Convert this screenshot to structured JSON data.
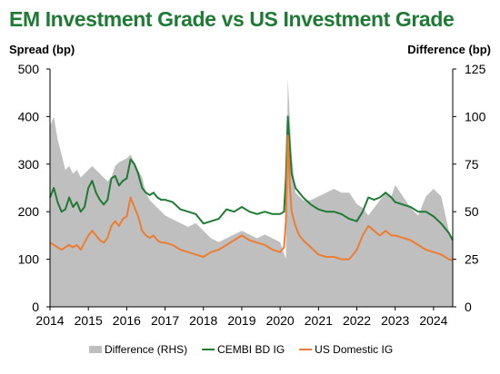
{
  "chart_data": {
    "type": "line",
    "title": "EM Investment Grade vs US Investment Grade",
    "ylabel": "Spread (bp)",
    "y2label": "Difference (bp)",
    "xlim": [
      2014.0,
      2024.5
    ],
    "ylim": [
      0,
      500
    ],
    "y2lim": [
      0,
      125
    ],
    "x_ticks": [
      "2014",
      "2015",
      "2016",
      "2017",
      "2018",
      "2019",
      "2020",
      "2021",
      "2022",
      "2023",
      "2024"
    ],
    "y_ticks": [
      "0",
      "100",
      "200",
      "300",
      "400",
      "500"
    ],
    "y2_ticks": [
      "0",
      "25",
      "50",
      "75",
      "100",
      "125"
    ],
    "grid": false,
    "legend_position": "bottom",
    "x": [
      2014.0,
      2014.1,
      2014.2,
      2014.3,
      2014.4,
      2014.5,
      2014.6,
      2014.7,
      2014.8,
      2014.9,
      2015.0,
      2015.1,
      2015.2,
      2015.3,
      2015.4,
      2015.5,
      2015.6,
      2015.7,
      2015.8,
      2015.9,
      2016.0,
      2016.1,
      2016.2,
      2016.3,
      2016.4,
      2016.5,
      2016.6,
      2016.7,
      2016.8,
      2016.9,
      2017.0,
      2017.2,
      2017.4,
      2017.6,
      2017.8,
      2018.0,
      2018.2,
      2018.4,
      2018.6,
      2018.8,
      2019.0,
      2019.2,
      2019.4,
      2019.6,
      2019.8,
      2020.0,
      2020.1,
      2020.15,
      2020.2,
      2020.25,
      2020.3,
      2020.4,
      2020.5,
      2020.6,
      2020.8,
      2021.0,
      2021.2,
      2021.4,
      2021.6,
      2021.8,
      2022.0,
      2022.15,
      2022.3,
      2022.45,
      2022.6,
      2022.75,
      2022.9,
      2023.0,
      2023.2,
      2023.4,
      2023.6,
      2023.8,
      2024.0,
      2024.2,
      2024.4,
      2024.5
    ],
    "series": [
      {
        "name": "Difference (RHS)",
        "axis": "right",
        "style": "area",
        "color": "#bfbfbf",
        "values": [
          95,
          100,
          88,
          80,
          72,
          74,
          70,
          72,
          68,
          70,
          72,
          74,
          72,
          70,
          68,
          66,
          68,
          74,
          76,
          77,
          78,
          80,
          76,
          72,
          68,
          60,
          56,
          54,
          52,
          50,
          48,
          46,
          44,
          42,
          44,
          40,
          36,
          34,
          36,
          38,
          40,
          38,
          36,
          38,
          36,
          34,
          28,
          25,
          120,
          100,
          80,
          60,
          58,
          56,
          56,
          58,
          60,
          62,
          60,
          60,
          54,
          52,
          48,
          52,
          56,
          60,
          58,
          64,
          58,
          52,
          48,
          58,
          62,
          58,
          40,
          36
        ]
      },
      {
        "name": "CEMBI BD IG",
        "axis": "left",
        "style": "line",
        "color": "#1f7a35",
        "values": [
          230,
          250,
          220,
          200,
          205,
          230,
          210,
          220,
          200,
          210,
          250,
          265,
          240,
          225,
          215,
          225,
          270,
          275,
          255,
          265,
          270,
          310,
          300,
          280,
          250,
          240,
          235,
          240,
          230,
          225,
          225,
          220,
          205,
          200,
          195,
          175,
          180,
          185,
          205,
          200,
          210,
          200,
          195,
          200,
          195,
          195,
          200,
          270,
          400,
          340,
          280,
          250,
          240,
          230,
          215,
          205,
          200,
          200,
          195,
          185,
          180,
          200,
          230,
          225,
          230,
          240,
          230,
          220,
          215,
          210,
          200,
          200,
          190,
          175,
          155,
          140
        ]
      },
      {
        "name": "US Domestic IG",
        "axis": "left",
        "style": "line",
        "color": "#ed7d31",
        "values": [
          135,
          130,
          125,
          120,
          125,
          130,
          125,
          130,
          120,
          135,
          150,
          160,
          150,
          140,
          135,
          145,
          170,
          180,
          170,
          185,
          190,
          230,
          210,
          190,
          160,
          150,
          145,
          150,
          140,
          135,
          135,
          130,
          120,
          115,
          110,
          105,
          115,
          120,
          130,
          140,
          150,
          140,
          135,
          130,
          120,
          115,
          125,
          180,
          360,
          260,
          200,
          170,
          150,
          140,
          125,
          110,
          105,
          105,
          100,
          100,
          120,
          150,
          170,
          160,
          150,
          160,
          150,
          150,
          145,
          140,
          130,
          120,
          115,
          110,
          100,
          98
        ]
      }
    ]
  }
}
